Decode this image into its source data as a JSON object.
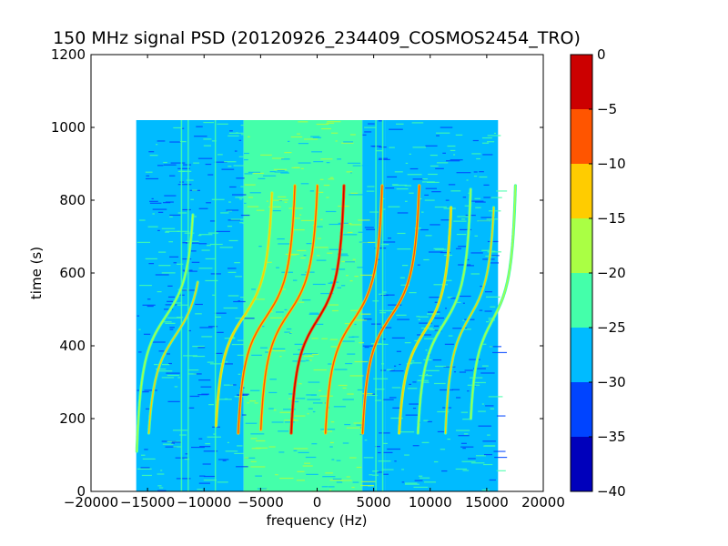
{
  "chart_data": {
    "type": "heatmap",
    "title": "150 MHz signal PSD (20120926_234409_COSMOS2454_TRO)",
    "xlabel": "frequency (Hz)",
    "ylabel": "time (s)",
    "xlim": [
      -20000,
      20000
    ],
    "ylim": [
      0,
      1200
    ],
    "x_ticks": [
      -20000,
      -15000,
      -10000,
      -5000,
      0,
      5000,
      10000,
      15000,
      20000
    ],
    "x_tick_labels": [
      "−20000",
      "−15000",
      "−10000",
      "−5000",
      "0",
      "5000",
      "10000",
      "15000",
      "20000"
    ],
    "y_ticks": [
      0,
      200,
      400,
      600,
      800,
      1000,
      1200
    ],
    "y_tick_labels": [
      "0",
      "200",
      "400",
      "600",
      "800",
      "1000",
      "1200"
    ],
    "data_extent": {
      "x": [
        -16000,
        16000
      ],
      "y": [
        0,
        1020
      ]
    },
    "grid": false,
    "colorbar": {
      "range": [
        -40,
        0
      ],
      "ticks": [
        0,
        -5,
        -10,
        -15,
        -20,
        -25,
        -30,
        -35,
        -40
      ],
      "tick_labels": [
        "0",
        "−5",
        "−10",
        "−15",
        "−20",
        "−25",
        "−30",
        "−35",
        "−40"
      ],
      "bands": [
        {
          "range": [
            -40,
            -35
          ],
          "color": "#0000bb"
        },
        {
          "range": [
            -35,
            -30
          ],
          "color": "#0044ff"
        },
        {
          "range": [
            -30,
            -25
          ],
          "color": "#00bbff"
        },
        {
          "range": [
            -25,
            -20
          ],
          "color": "#44ffaa"
        },
        {
          "range": [
            -20,
            -15
          ],
          "color": "#aaff44"
        },
        {
          "range": [
            -15,
            -10
          ],
          "color": "#ffcc00"
        },
        {
          "range": [
            -10,
            -5
          ],
          "color": "#ff5500"
        },
        {
          "range": [
            -5,
            0
          ],
          "color": "#cc0000"
        }
      ]
    },
    "background_regions": [
      {
        "x": [
          -16000,
          -6500
        ],
        "level_db": -27
      },
      {
        "x": [
          -6500,
          4000
        ],
        "level_db": -23
      },
      {
        "x": [
          4000,
          6000
        ],
        "level_db": -26
      },
      {
        "x": [
          6000,
          16000
        ],
        "level_db": -28
      }
    ],
    "vertical_lines": [
      -12000,
      -11400,
      -9000,
      5200,
      5800
    ],
    "signal_traces": [
      {
        "f_center": -13400,
        "t_center": 480,
        "half_span": 3000,
        "t_start": 110,
        "t_end": 760,
        "peak_db": -18
      },
      {
        "f_center": -12500,
        "t_center": 430,
        "half_span": 3000,
        "t_start": 160,
        "t_end": 575,
        "peak_db": -15
      },
      {
        "f_center": -6500,
        "t_center": 480,
        "half_span": 3000,
        "t_start": 180,
        "t_end": 820,
        "peak_db": -12
      },
      {
        "f_center": -4500,
        "t_center": 480,
        "half_span": 3000,
        "t_start": 160,
        "t_end": 840,
        "peak_db": -8
      },
      {
        "f_center": -2500,
        "t_center": 490,
        "half_span": 3000,
        "t_start": 170,
        "t_end": 840,
        "peak_db": -6
      },
      {
        "f_center": 0,
        "t_center": 470,
        "half_span": 2800,
        "t_start": 160,
        "t_end": 840,
        "peak_db": -4
      },
      {
        "f_center": 3200,
        "t_center": 470,
        "half_span": 3000,
        "t_start": 160,
        "t_end": 840,
        "peak_db": -6
      },
      {
        "f_center": 6500,
        "t_center": 480,
        "half_span": 3000,
        "t_start": 160,
        "t_end": 840,
        "peak_db": -7
      },
      {
        "f_center": 9500,
        "t_center": 440,
        "half_span": 2800,
        "t_start": 160,
        "t_end": 780,
        "peak_db": -13
      },
      {
        "f_center": 11200,
        "t_center": 460,
        "half_span": 2800,
        "t_start": 160,
        "t_end": 830,
        "peak_db": -16
      },
      {
        "f_center": 13500,
        "t_center": 480,
        "half_span": 2600,
        "t_start": 160,
        "t_end": 780,
        "peak_db": -15
      },
      {
        "f_center": 15500,
        "t_center": 470,
        "half_span": 2400,
        "t_start": 200,
        "t_end": 840,
        "peak_db": -16
      }
    ]
  }
}
